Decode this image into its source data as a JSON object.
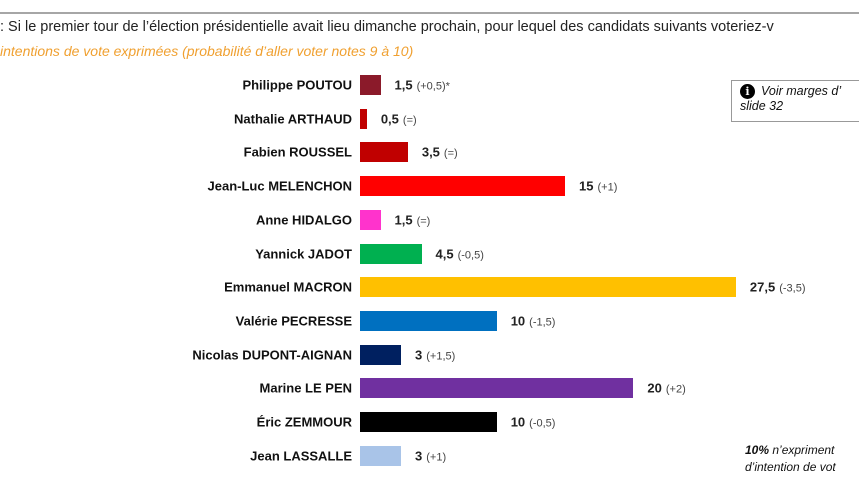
{
  "header": {
    "question": ": Si le premier tour de l’élection présidentielle avait lieu dimanche prochain, pour lequel des candidats suivants voteriez-v",
    "subtitle": "intentions de vote exprimées (probabilité d’aller voter notes 9 à 10)"
  },
  "note": {
    "icon": "info-icon",
    "line1": "Voir marges d’",
    "line2": "slide 32"
  },
  "footnote": {
    "bold": "10%",
    "rest": " n’expriment",
    "line2": "d’intention de vot"
  },
  "chart_data": {
    "type": "bar",
    "orientation": "horizontal",
    "xlim": [
      0,
      27.5
    ],
    "categories": [
      "Philippe POUTOU",
      "Nathalie ARTHAUD",
      "Fabien ROUSSEL",
      "Jean-Luc MELENCHON",
      "Anne HIDALGO",
      "Yannick JADOT",
      "Emmanuel MACRON",
      "Valérie PECRESSE",
      "Nicolas DUPONT-AIGNAN",
      "Marine LE PEN",
      "Éric ZEMMOUR",
      "Jean LASSALLE"
    ],
    "values": [
      1.5,
      0.5,
      3.5,
      15,
      1.5,
      4.5,
      27.5,
      10,
      3,
      20,
      10,
      3
    ],
    "value_labels": [
      "1,5",
      "0,5",
      "3,5",
      "15",
      "1,5",
      "4,5",
      "27,5",
      "10",
      "3",
      "20",
      "10",
      "3"
    ],
    "changes": [
      "(+0,5)*",
      "(=)",
      "(=)",
      "(+1)",
      "(=)",
      "(-0,5)",
      "(-3,5)",
      "(-1,5)",
      "(+1,5)",
      "(+2)",
      "(-0,5)",
      "(+1)"
    ],
    "colors": [
      "#8b1a2a",
      "#c00000",
      "#c00000",
      "#ff0000",
      "#ff33cc",
      "#00b050",
      "#ffc000",
      "#0070c0",
      "#002060",
      "#7030a0",
      "#000000",
      "#a9c4e8"
    ]
  }
}
